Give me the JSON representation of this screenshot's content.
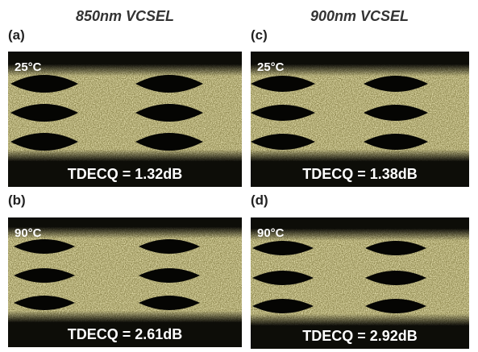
{
  "columns": [
    "850nm VCSEL",
    "900nm VCSEL"
  ],
  "panels": [
    {
      "label": "(a)",
      "temperature": "25°C",
      "tdecq": "TDECQ = 1.32dB"
    },
    {
      "label": "(b)",
      "temperature": "90°C",
      "tdecq": "TDECQ = 2.61dB"
    },
    {
      "label": "(c)",
      "temperature": "25°C",
      "tdecq": "TDECQ = 1.38dB"
    },
    {
      "label": "(d)",
      "temperature": "90°C",
      "tdecq": "TDECQ = 2.92dB"
    }
  ]
}
